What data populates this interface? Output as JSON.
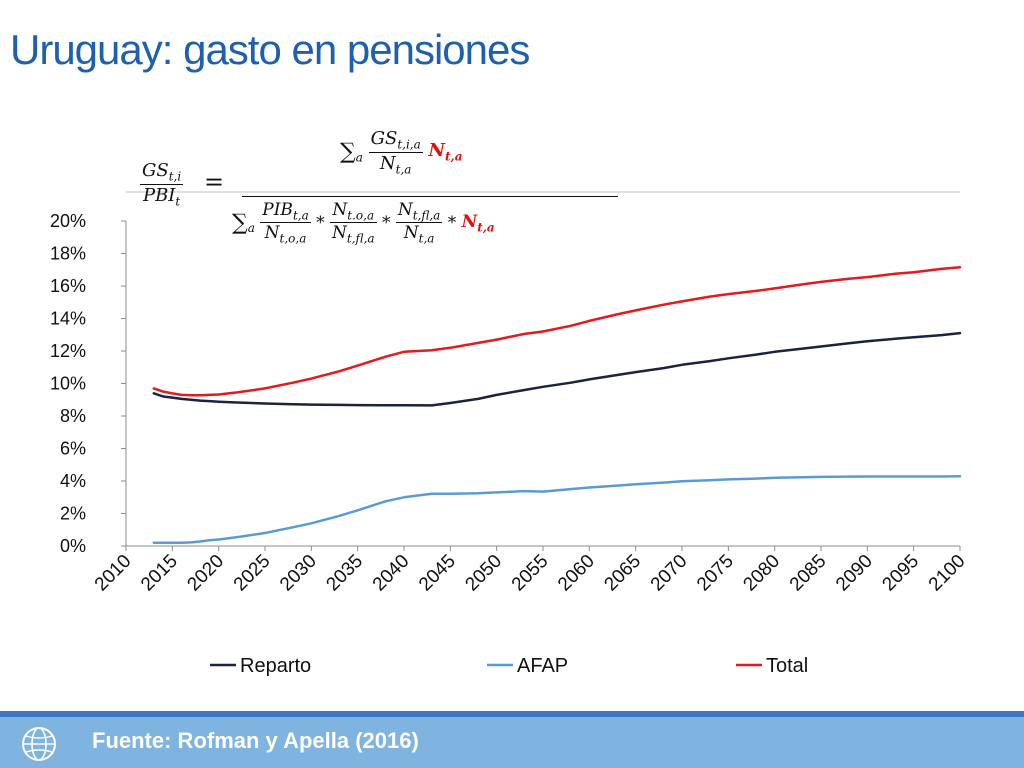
{
  "slide": {
    "title": "Uruguay: gasto en pensiones",
    "source": "Fuente: Rofman y Apella (2016)"
  },
  "icons": {
    "footer_logo": "globe-icon"
  },
  "colors": {
    "title": "#1f5fb0",
    "reparto": "#1b2340",
    "afap": "#5b9bd5",
    "total": "#e41a1c",
    "footer": "#7fb3e0"
  },
  "chart_data": {
    "type": "line",
    "title": "",
    "xlabel": "",
    "ylabel": "",
    "x": [
      2013,
      2014,
      2015,
      2016,
      2017,
      2018,
      2019,
      2020,
      2022,
      2025,
      2028,
      2030,
      2033,
      2035,
      2038,
      2040,
      2043,
      2045,
      2048,
      2050,
      2053,
      2055,
      2058,
      2060,
      2063,
      2065,
      2068,
      2070,
      2073,
      2075,
      2078,
      2080,
      2083,
      2085,
      2088,
      2090,
      2093,
      2095,
      2098,
      2100
    ],
    "xticks": [
      "2010",
      "2015",
      "2020",
      "2025",
      "2030",
      "2035",
      "2040",
      "2045",
      "2050",
      "2055",
      "2060",
      "2065",
      "2070",
      "2075",
      "2080",
      "2085",
      "2090",
      "2095",
      "2100"
    ],
    "xlim": [
      2010,
      2100
    ],
    "ylim": [
      0,
      0.2
    ],
    "yticks": [
      "0%",
      "2%",
      "4%",
      "6%",
      "8%",
      "10%",
      "12%",
      "14%",
      "16%",
      "18%",
      "20%"
    ],
    "grid": false,
    "legend_position": "bottom",
    "series": [
      {
        "name": "Reparto",
        "values": [
          0.094,
          0.092,
          0.0913,
          0.0905,
          0.09,
          0.0895,
          0.0892,
          0.0888,
          0.0883,
          0.0877,
          0.0872,
          0.087,
          0.0868,
          0.0867,
          0.0866,
          0.0866,
          0.0865,
          0.088,
          0.0905,
          0.093,
          0.096,
          0.098,
          0.1005,
          0.1025,
          0.1052,
          0.107,
          0.1095,
          0.1115,
          0.1138,
          0.1155,
          0.1178,
          0.1195,
          0.1215,
          0.1228,
          0.1248,
          0.126,
          0.1275,
          0.1285,
          0.1298,
          0.131
        ]
      },
      {
        "name": "AFAP",
        "values": [
          0.002,
          0.002,
          0.002,
          0.002,
          0.0022,
          0.0028,
          0.0035,
          0.004,
          0.0055,
          0.008,
          0.0115,
          0.014,
          0.0185,
          0.022,
          0.0275,
          0.03,
          0.0322,
          0.0322,
          0.0325,
          0.033,
          0.0338,
          0.0335,
          0.035,
          0.036,
          0.0372,
          0.038,
          0.039,
          0.0398,
          0.0405,
          0.041,
          0.0415,
          0.042,
          0.0423,
          0.0425,
          0.0427,
          0.0428,
          0.0428,
          0.0428,
          0.0428,
          0.0429
        ]
      },
      {
        "name": "Total",
        "values": [
          0.097,
          0.095,
          0.094,
          0.093,
          0.0928,
          0.0928,
          0.093,
          0.0932,
          0.0945,
          0.097,
          0.1005,
          0.103,
          0.1075,
          0.111,
          0.1165,
          0.1195,
          0.1205,
          0.122,
          0.125,
          0.127,
          0.1305,
          0.132,
          0.1355,
          0.1385,
          0.1425,
          0.145,
          0.1485,
          0.1505,
          0.1535,
          0.155,
          0.157,
          0.1585,
          0.161,
          0.1625,
          0.1645,
          0.1655,
          0.1675,
          0.1685,
          0.1705,
          0.1715
        ]
      }
    ]
  },
  "formula": {
    "lhs_num": "GS",
    "lhs_num_sub": "t,i",
    "lhs_den": "PBI",
    "lhs_den_sub": "t",
    "equals": "=",
    "sigma": "∑",
    "sigma_sub": "a",
    "top_frac_num": "GS",
    "top_frac_num_sub": "t,i,a",
    "top_frac_den": "N",
    "top_frac_den_sub": "t,a",
    "n_bold": "N",
    "n_bold_sub": "t,a",
    "b1_num": "PIB",
    "b1_num_sub": "t,a",
    "b1_den": "N",
    "b1_den_sub": "t,o,a",
    "b2_num": "N",
    "b2_num_sub": "t.o,a",
    "b2_den": "N",
    "b2_den_sub": "t,fl,a",
    "b3_num": "N",
    "b3_num_sub": "t,fl,a",
    "b3_den": "N",
    "b3_den_sub": "t,a",
    "times": "*"
  }
}
